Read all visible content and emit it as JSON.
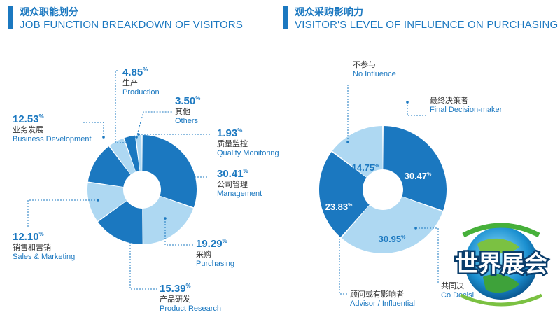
{
  "left_header": {
    "title_zh": "观众职能划分",
    "title_en": "JOB FUNCTION BREAKDOWN OF VISITORS"
  },
  "right_header": {
    "title_zh": "观众采购影响力",
    "title_en": "VISITOR'S LEVEL OF INFLUENCE ON PURCHASING"
  },
  "watermark": {
    "text": "世界展会"
  },
  "colors": {
    "dark": "#1b78c0",
    "light": "#aed8f2",
    "text": "#333333"
  },
  "chart_data": [
    {
      "type": "pie",
      "donut": true,
      "title": "JOB FUNCTION BREAKDOWN OF VISITORS",
      "slices": [
        {
          "label_zh": "公司管理",
          "label_en": "Management",
          "value": 30.41,
          "pct_text": "30.41",
          "color": "dark"
        },
        {
          "label_zh": "采购",
          "label_en": "Purchasing",
          "value": 19.29,
          "pct_text": "19.29",
          "color": "light"
        },
        {
          "label_zh": "产品研发",
          "label_en": "Product Research",
          "value": 15.39,
          "pct_text": "15.39",
          "color": "dark"
        },
        {
          "label_zh": "销售和营销",
          "label_en": "Sales & Marketing",
          "value": 12.1,
          "pct_text": "12.10",
          "color": "light"
        },
        {
          "label_zh": "业务发展",
          "label_en": "Business Development",
          "value": 12.53,
          "pct_text": "12.53",
          "color": "dark"
        },
        {
          "label_zh": "生产",
          "label_en": "Production",
          "value": 4.85,
          "pct_text": "4.85",
          "color": "light"
        },
        {
          "label_zh": "其他",
          "label_en": "Others",
          "value": 3.5,
          "pct_text": "3.50",
          "color": "dark"
        },
        {
          "label_zh": "质量监控",
          "label_en": "Quality Monitoring",
          "value": 1.93,
          "pct_text": "1.93",
          "color": "light"
        }
      ]
    },
    {
      "type": "pie",
      "donut": true,
      "title": "VISITOR'S LEVEL OF INFLUENCE ON PURCHASING",
      "slices": [
        {
          "label_zh": "最终决策者",
          "label_en": "Final Decision-maker",
          "value": 30.47,
          "pct_text": "30.47",
          "color": "dark"
        },
        {
          "label_zh": "共同决",
          "label_en": "Co Decisi",
          "value": 30.95,
          "pct_text": "30.95",
          "color": "light"
        },
        {
          "label_zh": "顾问或有影响者",
          "label_en": "Advisor / Influential",
          "value": 23.83,
          "pct_text": "23.83",
          "color": "dark"
        },
        {
          "label_zh": "不参与",
          "label_en": "No Influence",
          "value": 14.75,
          "pct_text": "14.75",
          "color": "light"
        }
      ]
    }
  ]
}
